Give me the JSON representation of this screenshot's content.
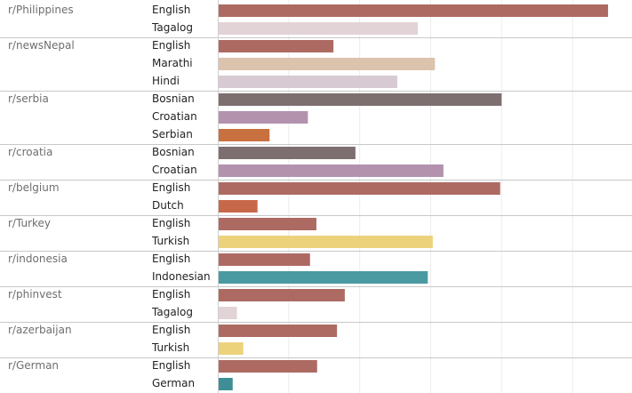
{
  "chart_data": {
    "type": "bar",
    "orientation": "horizontal",
    "title": "",
    "xlabel": "",
    "ylabel": "",
    "grid": true,
    "xlim": [
      0,
      580
    ],
    "groups": [
      {
        "subreddit": "r/Philippines",
        "bars": [
          {
            "language": "English",
            "value": 550
          },
          {
            "language": "Tagalog",
            "value": 282
          }
        ]
      },
      {
        "subreddit": "r/newsNepal",
        "bars": [
          {
            "language": "English",
            "value": 163
          },
          {
            "language": "Marathi",
            "value": 306
          },
          {
            "language": "Hindi",
            "value": 253
          }
        ]
      },
      {
        "subreddit": "r/serbia",
        "bars": [
          {
            "language": "Bosnian",
            "value": 400
          },
          {
            "language": "Croatian",
            "value": 127
          },
          {
            "language": "Serbian",
            "value": 73
          }
        ]
      },
      {
        "subreddit": "r/croatia",
        "bars": [
          {
            "language": "Bosnian",
            "value": 194
          },
          {
            "language": "Croatian",
            "value": 318
          }
        ]
      },
      {
        "subreddit": "r/belgium",
        "bars": [
          {
            "language": "English",
            "value": 398
          },
          {
            "language": "Dutch",
            "value": 56
          }
        ]
      },
      {
        "subreddit": "r/Turkey",
        "bars": [
          {
            "language": "English",
            "value": 139
          },
          {
            "language": "Turkish",
            "value": 303
          }
        ]
      },
      {
        "subreddit": "r/indonesia",
        "bars": [
          {
            "language": "English",
            "value": 130
          },
          {
            "language": "Indonesian",
            "value": 296
          }
        ]
      },
      {
        "subreddit": "r/phinvest",
        "bars": [
          {
            "language": "English",
            "value": 179
          },
          {
            "language": "Tagalog",
            "value": 27
          }
        ]
      },
      {
        "subreddit": "r/azerbaijan",
        "bars": [
          {
            "language": "English",
            "value": 168
          },
          {
            "language": "Turkish",
            "value": 36
          }
        ]
      },
      {
        "subreddit": "r/German",
        "bars": [
          {
            "language": "English",
            "value": 140
          },
          {
            "language": "German",
            "value": 21
          }
        ]
      }
    ],
    "language_colors": {
      "English": "#ad6a63",
      "Tagalog": "#e2d3d7",
      "Marathi": "#dcc3ae",
      "Hindi": "#d8cad3",
      "Bosnian": "#7d6e70",
      "Croatian": "#b392ae",
      "Serbian": "#c87040",
      "Dutch": "#c8684a",
      "Turkish": "#edd27c",
      "Indonesian": "#4a9aa2",
      "German": "#3f8e96"
    },
    "colors": {
      "gridline": "#ececec",
      "separator": "#c8c8c8",
      "axis_line": "#cfcfcf"
    }
  }
}
